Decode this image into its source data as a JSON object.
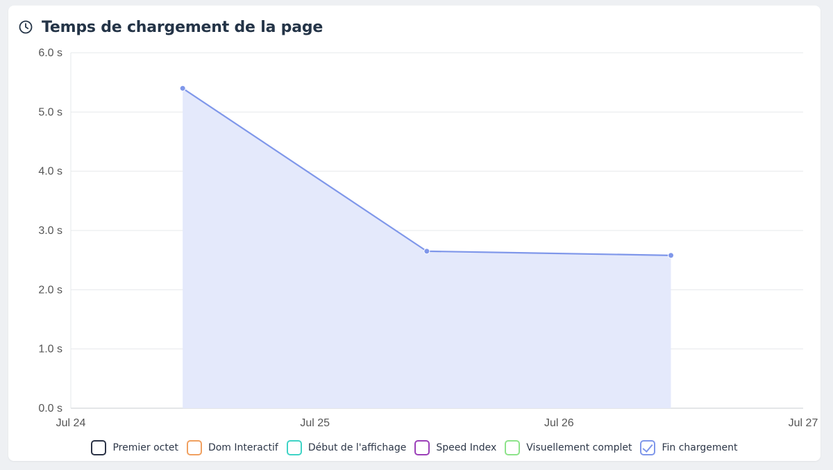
{
  "header": {
    "title": "Temps de chargement de la page",
    "icon": "clock-icon"
  },
  "chart_data": {
    "type": "area",
    "title": "Temps de chargement de la page",
    "xlabel": "",
    "ylabel": "",
    "x_ticks": [
      "Jul 24",
      "Jul 25",
      "Jul 26",
      "Jul 27"
    ],
    "x_range": [
      "2023-07-24T00:00",
      "2023-07-27T00:00"
    ],
    "ylim": [
      0,
      6
    ],
    "y_ticks": [
      "0.0 s",
      "1.0 s",
      "2.0 s",
      "3.0 s",
      "4.0 s",
      "5.0 s",
      "6.0 s"
    ],
    "grid": true,
    "legend_placement": "bottom",
    "series": [
      {
        "name": "Fin chargement",
        "color": "#7f97ea",
        "fill": "#e4e9fb",
        "points": [
          {
            "x": "2023-07-24T11:00",
            "y": 5.4
          },
          {
            "x": "2023-07-25T11:00",
            "y": 2.65
          },
          {
            "x": "2023-07-26T11:00",
            "y": 2.58
          }
        ]
      }
    ]
  },
  "legend": [
    {
      "label": "Premier octet",
      "color": "#2b3346",
      "checked": false
    },
    {
      "label": "Dom Interactif",
      "color": "#f0a060",
      "checked": false
    },
    {
      "label": "Début de l'affichage",
      "color": "#3fd3c6",
      "checked": false
    },
    {
      "label": "Speed Index",
      "color": "#9b3fb8",
      "checked": false
    },
    {
      "label": "Visuellement complet",
      "color": "#8de38a",
      "checked": false
    },
    {
      "label": "Fin chargement",
      "color": "#7f97ea",
      "checked": true
    }
  ]
}
